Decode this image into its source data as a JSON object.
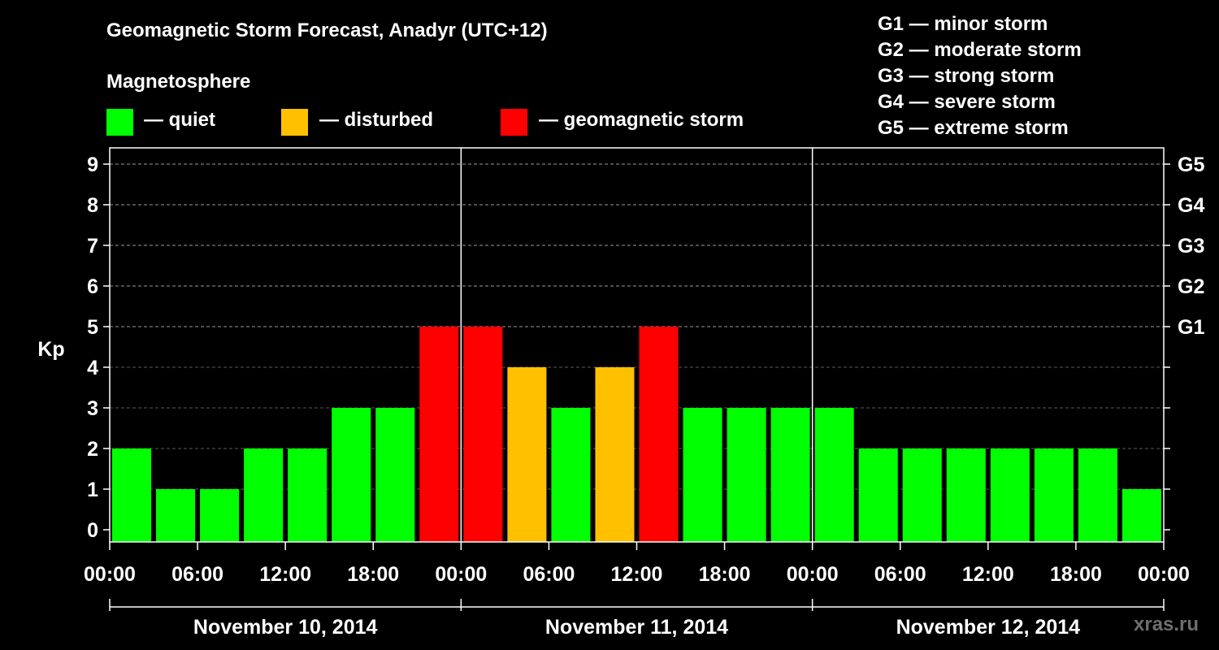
{
  "header": {
    "title": "Geomagnetic Storm Forecast, Anadyr (UTC+12)",
    "magnetosphere": "Magnetosphere"
  },
  "legend": [
    {
      "label": "— quiet",
      "color": "#00ff00"
    },
    {
      "label": "— disturbed",
      "color": "#ffc000"
    },
    {
      "label": "— geomagnetic storm",
      "color": "#ff0000"
    }
  ],
  "g_scale": [
    "G1 — minor storm",
    "G2 — moderate storm",
    "G3 — strong storm",
    "G4 — severe storm",
    "G5 — extreme storm"
  ],
  "watermark": "xras.ru",
  "chart_data": {
    "type": "bar",
    "title": "Geomagnetic Storm Forecast, Anadyr (UTC+12)",
    "ylabel": "Kp",
    "ylim": [
      0,
      9
    ],
    "yticks": [
      "0",
      "1",
      "2",
      "3",
      "4",
      "5",
      "6",
      "7",
      "8",
      "9"
    ],
    "right_axis": [
      {
        "kp": 5,
        "label": "G1"
      },
      {
        "kp": 6,
        "label": "G2"
      },
      {
        "kp": 7,
        "label": "G3"
      },
      {
        "kp": 8,
        "label": "G4"
      },
      {
        "kp": 9,
        "label": "G5"
      }
    ],
    "xticks": [
      "00:00",
      "06:00",
      "12:00",
      "18:00",
      "00:00",
      "06:00",
      "12:00",
      "18:00",
      "00:00",
      "06:00",
      "12:00",
      "18:00",
      "00:00"
    ],
    "days": [
      "November 10, 2014",
      "November 11, 2014",
      "November 12, 2014"
    ],
    "interval_hours": 3,
    "values": [
      2,
      1,
      1,
      2,
      2,
      3,
      3,
      5,
      5,
      4,
      3,
      4,
      5,
      3,
      3,
      3,
      3,
      2,
      2,
      2,
      2,
      2,
      2,
      1
    ],
    "colors": {
      "quiet": "#00ff00",
      "disturbed": "#ffc000",
      "storm": "#ff0000"
    },
    "grid": "dashed horizontal at each Kp level"
  }
}
